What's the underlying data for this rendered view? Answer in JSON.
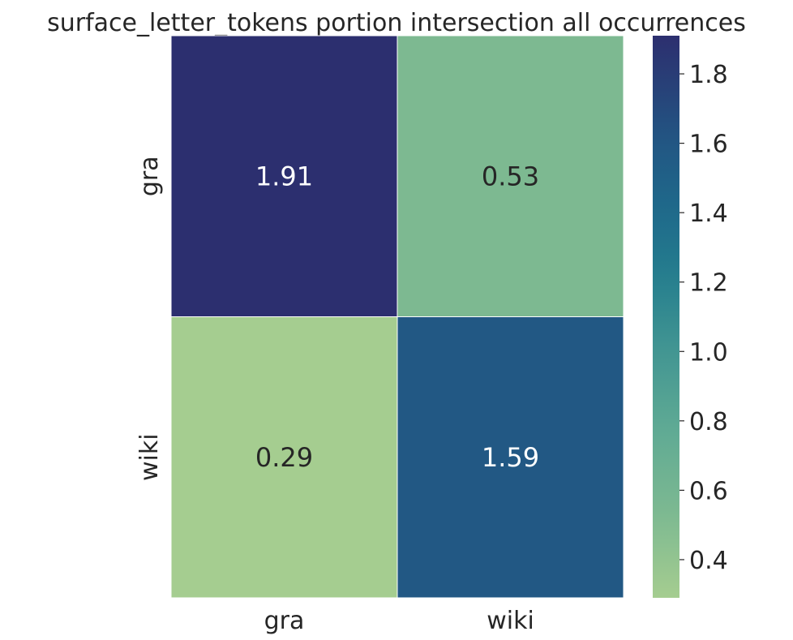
{
  "chart_data": {
    "type": "heatmap",
    "title": "surface_letter_tokens portion intersection all occurrences",
    "xlabel": "",
    "ylabel": "",
    "x_categories": [
      "gra",
      "wiki"
    ],
    "y_categories": [
      "gra",
      "wiki"
    ],
    "values": [
      [
        1.91,
        0.53
      ],
      [
        0.29,
        1.59
      ]
    ],
    "value_labels": [
      [
        "1.91",
        "0.53"
      ],
      [
        "0.29",
        "1.59"
      ]
    ],
    "colorbar": {
      "min": 0.29,
      "max": 1.91,
      "ticks": [
        0.4,
        0.6,
        0.8,
        1.0,
        1.2,
        1.4,
        1.6,
        1.8
      ],
      "tick_labels": [
        "0.4",
        "0.6",
        "0.8",
        "1.0",
        "1.2",
        "1.4",
        "1.6",
        "1.8"
      ],
      "colormap": "crest",
      "placement": "right"
    },
    "colors": {
      "low": "#a5cd8f",
      "high": "#2c2f6f"
    },
    "grid": false
  }
}
